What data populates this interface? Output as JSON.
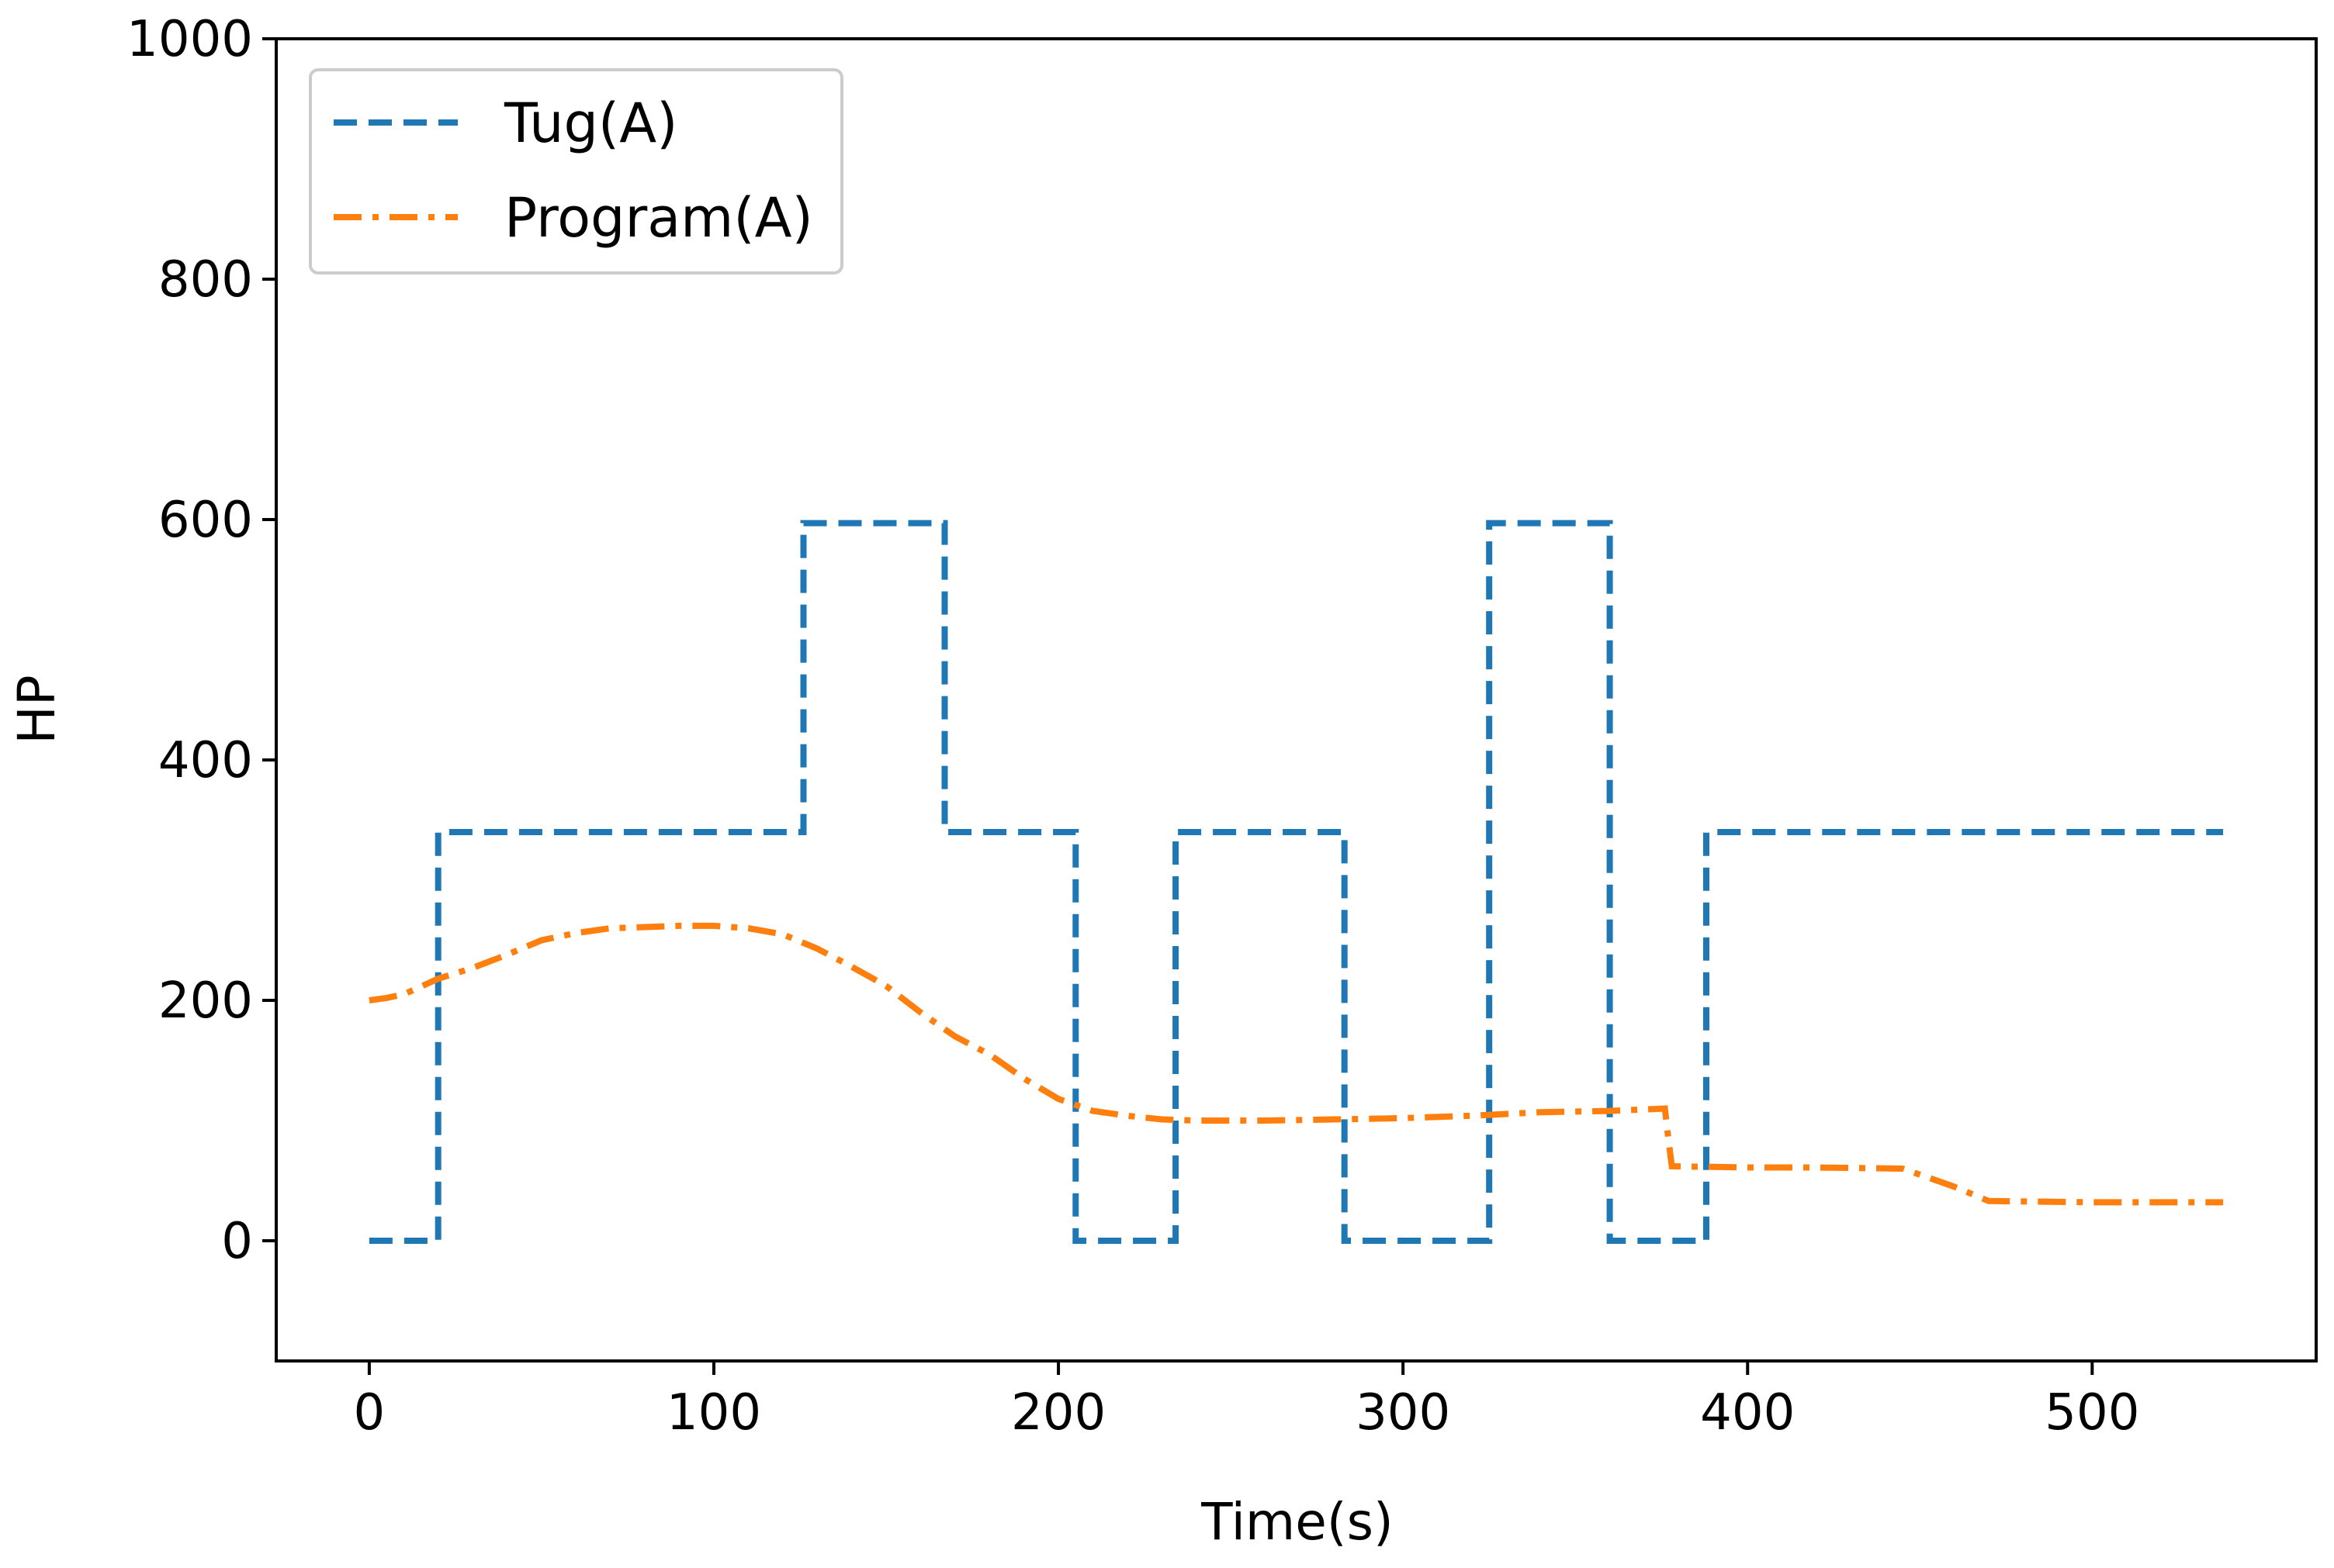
{
  "chart_data": {
    "type": "line",
    "title": "",
    "xlabel": "Time(s)",
    "ylabel": "HP",
    "xlim": [
      -27,
      565
    ],
    "ylim": [
      -100,
      1000
    ],
    "xticks": [
      0,
      100,
      200,
      300,
      400,
      500
    ],
    "yticks": [
      0,
      200,
      400,
      600,
      800,
      1000
    ],
    "grid": false,
    "legend_position": "top-left",
    "series": [
      {
        "name": "Tug(A)",
        "color": "#1f77b4",
        "style": "dashed",
        "x": [
          0,
          20,
          20,
          126,
          126,
          167,
          167,
          205,
          205,
          234,
          234,
          283,
          283,
          325,
          325,
          360,
          360,
          388,
          388,
          538
        ],
        "y": [
          0,
          0,
          340,
          340,
          597,
          597,
          340,
          340,
          0,
          0,
          340,
          340,
          0,
          0,
          597,
          597,
          0,
          0,
          340,
          340
        ]
      },
      {
        "name": "Program(A)",
        "color": "#ff7f0e",
        "style": "dashdot",
        "x": [
          0,
          5,
          10,
          20,
          30,
          40,
          50,
          60,
          70,
          80,
          90,
          100,
          110,
          120,
          130,
          140,
          150,
          160,
          170,
          180,
          190,
          200,
          210,
          220,
          230,
          240,
          260,
          280,
          300,
          320,
          340,
          360,
          376,
          377,
          378,
          400,
          420,
          445,
          460,
          470,
          500,
          538
        ],
        "y": [
          200,
          202,
          205,
          218,
          227,
          238,
          250,
          256,
          260,
          261,
          262,
          262,
          260,
          255,
          243,
          228,
          212,
          190,
          170,
          155,
          135,
          118,
          108,
          104,
          101,
          100,
          100,
          101,
          102,
          104,
          107,
          108,
          110,
          85,
          62,
          61,
          61,
          60,
          45,
          33,
          32,
          32
        ]
      }
    ]
  }
}
